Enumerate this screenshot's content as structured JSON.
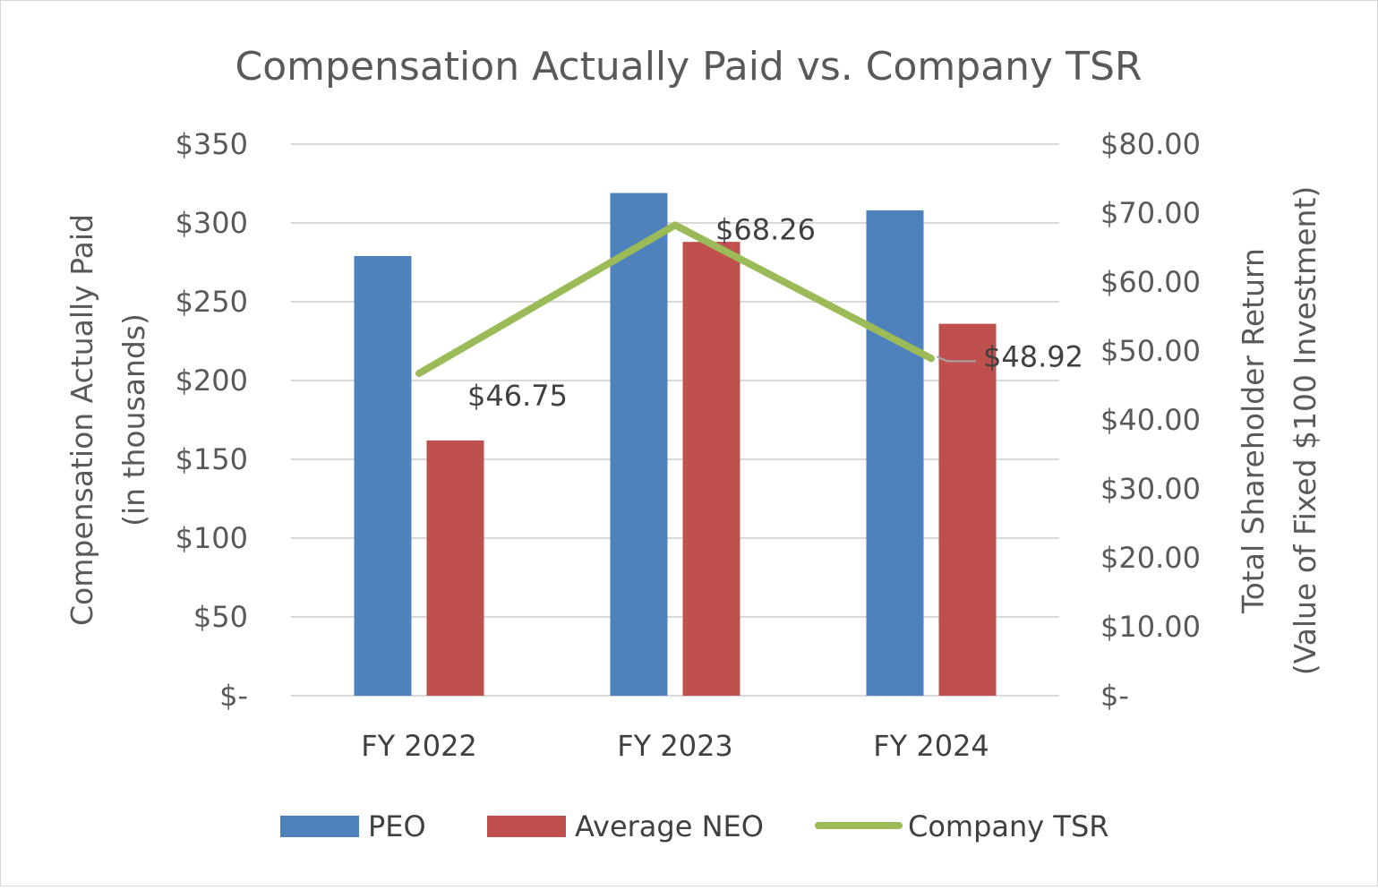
{
  "chart_data": {
    "type": "bar+line",
    "title": "Compensation Actually Paid vs. Company TSR",
    "categories": [
      "FY 2022",
      "FY 2023",
      "FY 2024"
    ],
    "series": [
      {
        "name": "PEO",
        "type": "bar",
        "axis": "left",
        "color": "#4f81bd",
        "values": [
          279,
          319,
          308
        ]
      },
      {
        "name": "Average NEO",
        "type": "bar",
        "axis": "left",
        "color": "#c0504d",
        "values": [
          162,
          288,
          236
        ]
      },
      {
        "name": "Company TSR",
        "type": "line",
        "axis": "right",
        "color": "#9bbb59",
        "values": [
          46.75,
          68.26,
          48.92
        ],
        "data_labels": [
          "$46.75",
          "$68.26",
          "$48.92"
        ]
      }
    ],
    "left_axis": {
      "title_line1": "Compensation Actually Paid",
      "title_line2": "(in thousands)",
      "ylim": [
        0,
        350
      ],
      "ticks": [
        0,
        50,
        100,
        150,
        200,
        250,
        300,
        350
      ],
      "tick_labels": [
        "$-",
        "$50",
        "$100",
        "$150",
        "$200",
        "$250",
        "$300",
        "$350"
      ]
    },
    "right_axis": {
      "title_line1": "Total Shareholder Return",
      "title_line2": "(Value of Fixed $100 Investment)",
      "ylim": [
        0,
        80
      ],
      "ticks": [
        0,
        10,
        20,
        30,
        40,
        50,
        60,
        70,
        80
      ],
      "tick_labels": [
        "$-",
        "$10.00",
        "$20.00",
        "$30.00",
        "$40.00",
        "$50.00",
        "$60.00",
        "$70.00",
        "$80.00"
      ]
    },
    "grid": true,
    "legend_position": "bottom"
  }
}
